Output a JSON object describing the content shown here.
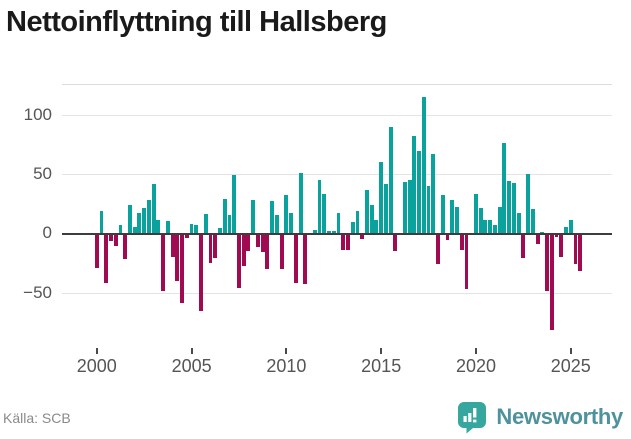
{
  "title": "Nettoinflyttning till Hallsberg",
  "source": "Källa: SCB",
  "branding": {
    "name": "Newsworthy"
  },
  "colors": {
    "positive": "#0aa29c",
    "negative": "#a00a50",
    "brand_icon": "#35a79f",
    "brand_text": "#4d929c"
  },
  "chart_data": {
    "type": "bar",
    "title": "Nettoinflyttning till Hallsberg",
    "frequency": "quarterly",
    "start_period": "2000 Q1",
    "end_period": "2025 Q3",
    "x_ticks": [
      {
        "label": "2000",
        "quarter_index": 0
      },
      {
        "label": "2005",
        "quarter_index": 20
      },
      {
        "label": "2010",
        "quarter_index": 40
      },
      {
        "label": "2015",
        "quarter_index": 60
      },
      {
        "label": "2020",
        "quarter_index": 80
      },
      {
        "label": "2025",
        "quarter_index": 100
      }
    ],
    "y_ticks": [
      {
        "label": "100",
        "value": 100
      },
      {
        "label": "50",
        "value": 50
      },
      {
        "label": "0",
        "value": 0
      },
      {
        "label": "−50",
        "value": -50
      }
    ],
    "ylim": [
      -91,
      126
    ],
    "grid": true,
    "legend": false,
    "values": [
      -28,
      20,
      -41,
      -6,
      -10,
      8,
      -21,
      25,
      6,
      18,
      22,
      29,
      42,
      12,
      -48,
      11,
      -19,
      -39,
      -58,
      -3,
      9,
      8,
      -65,
      17,
      -24,
      -20,
      5,
      30,
      16,
      50,
      -45,
      -27,
      -14,
      29,
      -11,
      -15,
      -29,
      28,
      16,
      -29,
      33,
      18,
      -41,
      52,
      -42,
      0,
      4,
      46,
      34,
      3,
      3,
      18,
      -13,
      -13,
      10,
      20,
      -4,
      37,
      25,
      12,
      61,
      42,
      90,
      -14,
      0,
      44,
      46,
      83,
      70,
      116,
      41,
      68,
      -25,
      33,
      -5,
      29,
      23,
      -13,
      -46,
      0,
      34,
      22,
      12,
      12,
      8,
      23,
      77,
      45,
      43,
      18,
      -20,
      51,
      21,
      -8,
      2,
      -48,
      -81,
      -2,
      -19,
      6,
      12,
      -25,
      -31
    ]
  }
}
